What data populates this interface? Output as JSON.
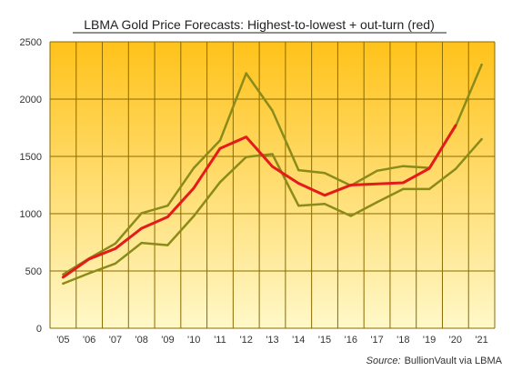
{
  "chart_data": {
    "type": "line",
    "title": "LBMA Gold Price Forecasts: Highest-to-lowest  + out-turn  (red)",
    "source_label": "Source:",
    "source_text": "BullionVault via LBMA",
    "x": [
      "'05",
      "'06",
      "'07",
      "'08",
      "'09",
      "'10",
      "'11",
      "'12",
      "'13",
      "'14",
      "'15",
      "'16",
      "'17",
      "'18",
      "'19",
      "'20",
      "'21"
    ],
    "ylim": [
      0,
      2500
    ],
    "yticks": [
      0,
      500,
      1000,
      1500,
      2000,
      2500
    ],
    "grid": true,
    "series": [
      {
        "role": "highest",
        "color": "#8b8b1a",
        "values": [
          470,
          610,
          740,
          1005,
          1070,
          1400,
          1640,
          2225,
          1900,
          1380,
          1355,
          1245,
          1375,
          1415,
          1400,
          1760,
          2300
        ]
      },
      {
        "role": "lowest",
        "color": "#8b8b1a",
        "values": [
          390,
          480,
          565,
          745,
          725,
          980,
          1275,
          1495,
          1520,
          1070,
          1085,
          980,
          1100,
          1215,
          1215,
          1390,
          1650
        ]
      },
      {
        "role": "out-turn",
        "color": "#e31b1b",
        "values": [
          445,
          605,
          695,
          872,
          972,
          1225,
          1570,
          1670,
          1412,
          1265,
          1160,
          1250,
          1260,
          1270,
          1395,
          1770,
          null
        ]
      }
    ]
  },
  "colors": {
    "plot_top": "#ffc21a",
    "plot_bottom": "#fff8c8",
    "grid": "#8a6a00",
    "band_line": "#8b8b1a",
    "outturn_line": "#e31b1b"
  }
}
